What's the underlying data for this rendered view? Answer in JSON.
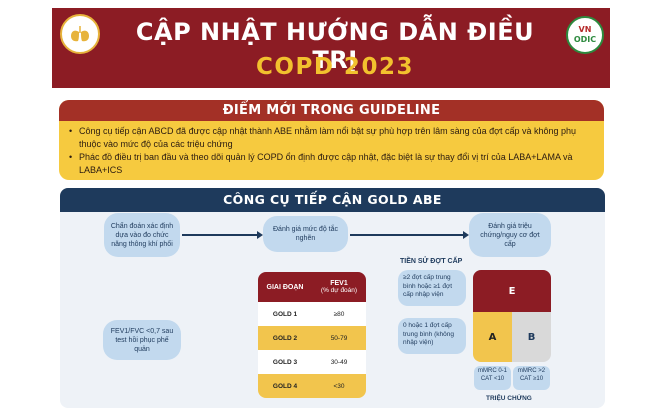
{
  "header": {
    "title_line1": "CẬP NHẬT HƯỚNG DẪN ĐIỀU TRỊ",
    "title_line2": "COPD 2023",
    "right_logo_line1": "VN",
    "right_logo_line2": "ODIC"
  },
  "whats_new": {
    "heading": "ĐIỂM MỚI TRONG GUIDELINE",
    "items": [
      "Công cụ tiếp cận ABCD đã được cập nhật thành ABE nhằm làm nổi bật sự phù hợp trên lâm sàng của đợt cấp và không phụ thuộc vào mức độ của các triệu chứng",
      "Phác đồ điều trị ban đầu và theo dõi quản lý COPD ổn định được cập nhật, đặc biệt là sự thay đổi vị trí của LABA+LAMA và LABA+ICS"
    ]
  },
  "abe": {
    "heading": "CÔNG CỤ TIẾP CẬN GOLD ABE",
    "step1": "Chẩn đoán xác định dựa vào đo chức năng thông khí phổi",
    "step2": "Đánh giá mức độ tắc nghẽn",
    "step3": "Đánh giá triệu chứng/nguy cơ đợt cấp",
    "criteria": "FEV1/FVC <0,7 sau test hồi phục phế quản",
    "table": {
      "col1": "GIAI ĐOẠN",
      "col2": "FEV1",
      "col2_sub": "(% dự đoán)",
      "rows": [
        {
          "stage": "GOLD 1",
          "value": "≥80"
        },
        {
          "stage": "GOLD 2",
          "value": "50-79"
        },
        {
          "stage": "GOLD 3",
          "value": "30-49"
        },
        {
          "stage": "GOLD 4",
          "value": "<30"
        }
      ]
    },
    "history_title": "TIỀN SỬ ĐỢT CẤP",
    "history_high": "≥2 đợt cấp trung bình hoặc ≥1 đợt cấp nhập viện",
    "history_low": "0 hoặc 1 đợt cấp trung bình (không nhập viện)",
    "group_e": "E",
    "group_a": "A",
    "group_b": "B",
    "mmrc_low": "mMRC 0-1 CAT <10",
    "mmrc_high": "mMRC >2 CAT ≥10",
    "symptoms_label": "TRIỆU CHỨNG"
  }
}
